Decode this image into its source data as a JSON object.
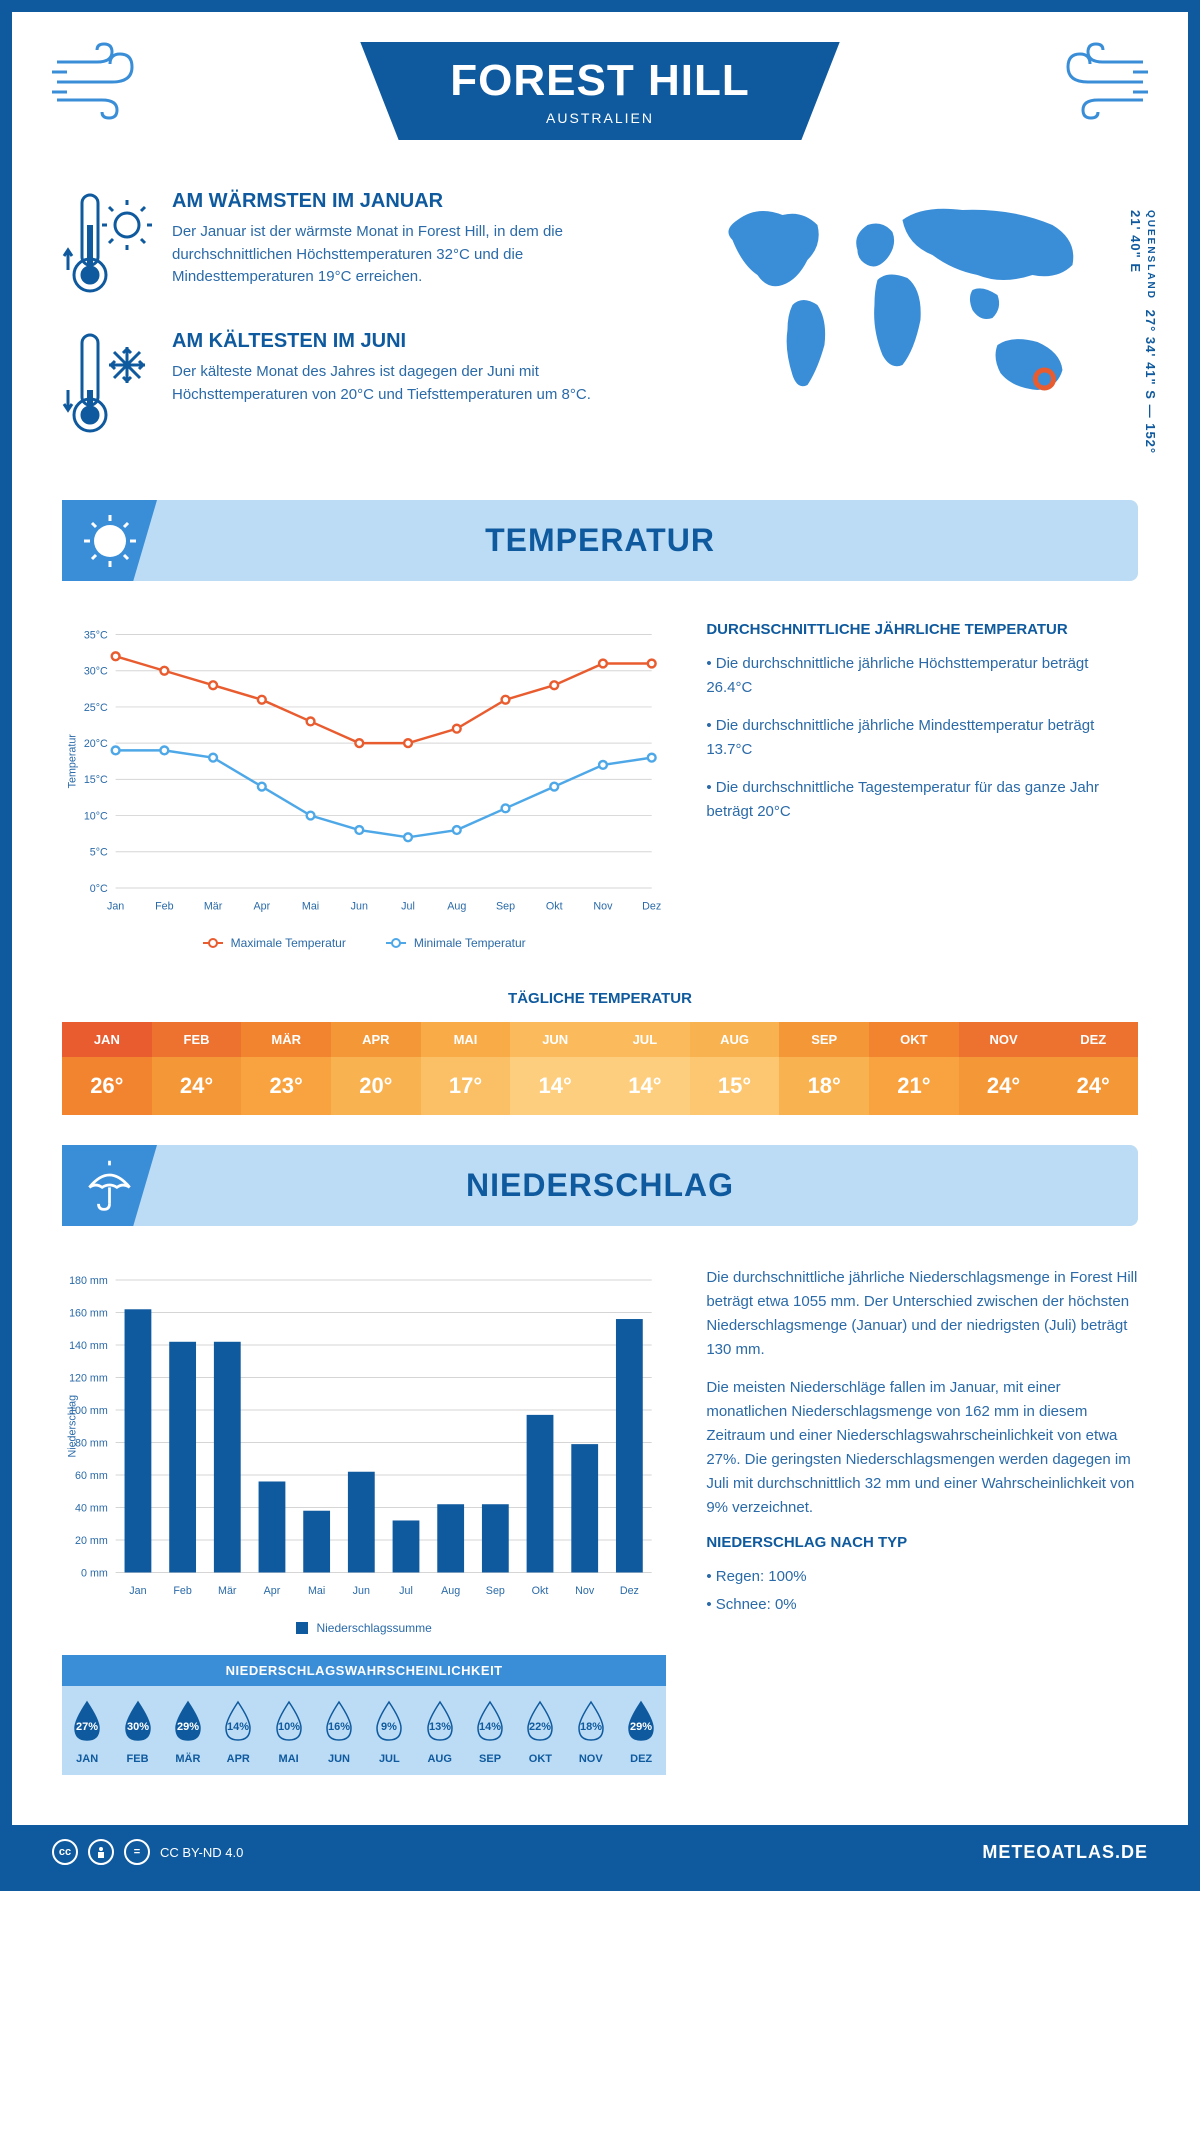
{
  "header": {
    "title": "FOREST HILL",
    "subtitle": "AUSTRALIEN"
  },
  "coords": {
    "region": "QUEENSLAND",
    "lat": "27° 34' 41\" S",
    "lng": "152° 21' 40\" E"
  },
  "facts": {
    "warm": {
      "title": "AM WÄRMSTEN IM JANUAR",
      "text": "Der Januar ist der wärmste Monat in Forest Hill, in dem die durchschnittlichen Höchsttemperaturen 32°C und die Mindesttemperaturen 19°C erreichen."
    },
    "cold": {
      "title": "AM KÄLTESTEN IM JUNI",
      "text": "Der kälteste Monat des Jahres ist dagegen der Juni mit Höchsttemperaturen von 20°C und Tiefsttemperaturen um 8°C."
    }
  },
  "sections": {
    "temp_title": "TEMPERATUR",
    "precip_title": "NIEDERSCHLAG"
  },
  "temp_chart": {
    "months": [
      "Jan",
      "Feb",
      "Mär",
      "Apr",
      "Mai",
      "Jun",
      "Jul",
      "Aug",
      "Sep",
      "Okt",
      "Nov",
      "Dez"
    ],
    "max_values": [
      32,
      30,
      28,
      26,
      23,
      20,
      20,
      22,
      26,
      28,
      31,
      31
    ],
    "min_values": [
      19,
      19,
      18,
      14,
      10,
      8,
      7,
      8,
      11,
      14,
      17,
      18
    ],
    "ylim": [
      0,
      35
    ],
    "ytick_step": 5,
    "ylabel": "Temperatur",
    "max_color": "#e85c2f",
    "min_color": "#4ea8e8",
    "grid_color": "#d5d5d5",
    "legend_max": "Maximale Temperatur",
    "legend_min": "Minimale Temperatur"
  },
  "temp_desc": {
    "title": "DURCHSCHNITTLICHE JÄHRLICHE TEMPERATUR",
    "bullet1": "• Die durchschnittliche jährliche Höchsttemperatur beträgt 26.4°C",
    "bullet2": "• Die durchschnittliche jährliche Mindesttemperatur beträgt 13.7°C",
    "bullet3": "• Die durchschnittliche Tagestemperatur für das ganze Jahr beträgt 20°C"
  },
  "daily_temp": {
    "title": "TÄGLICHE TEMPERATUR",
    "months": [
      "JAN",
      "FEB",
      "MÄR",
      "APR",
      "MAI",
      "JUN",
      "JUL",
      "AUG",
      "SEP",
      "OKT",
      "NOV",
      "DEZ"
    ],
    "values": [
      "26°",
      "24°",
      "23°",
      "20°",
      "17°",
      "14°",
      "14°",
      "15°",
      "18°",
      "21°",
      "24°",
      "24°"
    ],
    "head_colors": [
      "#e85c2f",
      "#ed712f",
      "#f2842f",
      "#f49736",
      "#f8ab47",
      "#fbbb5c",
      "#fbbb5c",
      "#f9b250",
      "#f49736",
      "#f2842f",
      "#ed712f",
      "#ed712f"
    ],
    "val_colors": [
      "#f2842f",
      "#f49736",
      "#f8a340",
      "#f9b250",
      "#fbc065",
      "#fdce7d",
      "#fdce7d",
      "#fcc770",
      "#f9b250",
      "#f8a340",
      "#f49736",
      "#f49736"
    ]
  },
  "precip_chart": {
    "months": [
      "Jan",
      "Feb",
      "Mär",
      "Apr",
      "Mai",
      "Jun",
      "Jul",
      "Aug",
      "Sep",
      "Okt",
      "Nov",
      "Dez"
    ],
    "values": [
      162,
      142,
      142,
      56,
      38,
      62,
      32,
      42,
      42,
      97,
      79,
      156
    ],
    "ylim": [
      0,
      180
    ],
    "ytick_step": 20,
    "ylabel": "Niederschlag",
    "bar_color": "#0f5a9e",
    "grid_color": "#d5d5d5",
    "legend_label": "Niederschlagssumme"
  },
  "precip_desc": {
    "para1": "Die durchschnittliche jährliche Niederschlagsmenge in Forest Hill beträgt etwa 1055 mm. Der Unterschied zwischen der höchsten Niederschlagsmenge (Januar) und der niedrigsten (Juli) beträgt 130 mm.",
    "para2": "Die meisten Niederschläge fallen im Januar, mit einer monatlichen Niederschlagsmenge von 162 mm in diesem Zeitraum und einer Niederschlagswahrscheinlichkeit von etwa 27%. Die geringsten Niederschlagsmengen werden dagegen im Juli mit durchschnittlich 32 mm und einer Wahrscheinlichkeit von 9% verzeichnet.",
    "type_title": "NIEDERSCHLAG NACH TYP",
    "rain": "• Regen: 100%",
    "snow": "• Schnee: 0%"
  },
  "precip_prob": {
    "title": "NIEDERSCHLAGSWAHRSCHEINLICHKEIT",
    "months": [
      "JAN",
      "FEB",
      "MÄR",
      "APR",
      "MAI",
      "JUN",
      "JUL",
      "AUG",
      "SEP",
      "OKT",
      "NOV",
      "DEZ"
    ],
    "values": [
      "27%",
      "30%",
      "29%",
      "14%",
      "10%",
      "16%",
      "9%",
      "13%",
      "14%",
      "22%",
      "18%",
      "29%"
    ],
    "colors": [
      "#0f5a9e",
      "#0f5a9e",
      "#0f5a9e",
      "#bcdcf5",
      "#bcdcf5",
      "#bcdcf5",
      "#bcdcf5",
      "#bcdcf5",
      "#bcdcf5",
      "#bcdcf5",
      "#bcdcf5",
      "#0f5a9e"
    ],
    "text_colors": [
      "#fff",
      "#fff",
      "#fff",
      "#0f5a9e",
      "#0f5a9e",
      "#0f5a9e",
      "#0f5a9e",
      "#0f5a9e",
      "#0f5a9e",
      "#0f5a9e",
      "#0f5a9e",
      "#fff"
    ]
  },
  "footer": {
    "license": "CC BY-ND 4.0",
    "brand": "METEOATLAS.DE"
  }
}
